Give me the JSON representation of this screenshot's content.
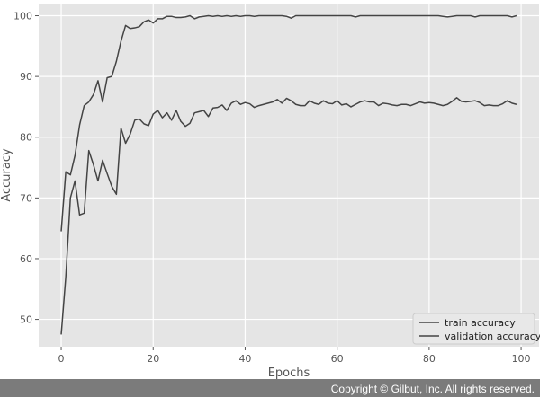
{
  "chart_data": {
    "type": "line",
    "title": "",
    "xlabel": "Epochs",
    "ylabel": "Accuracy",
    "xlim": [
      -4.9,
      103.9
    ],
    "ylim": [
      45.5,
      102.0
    ],
    "xticks": [
      0,
      20,
      40,
      60,
      80,
      100
    ],
    "yticks": [
      50,
      60,
      70,
      80,
      90,
      100
    ],
    "grid": true,
    "legend_position": "lower-right",
    "series": [
      {
        "name": "train accuracy",
        "color": "#444444",
        "x": [
          0,
          1,
          2,
          3,
          4,
          5,
          6,
          7,
          8,
          9,
          10,
          11,
          12,
          13,
          14,
          15,
          16,
          17,
          18,
          19,
          20,
          21,
          22,
          23,
          24,
          25,
          26,
          27,
          28,
          29,
          30,
          31,
          32,
          33,
          34,
          35,
          36,
          37,
          38,
          39,
          40,
          41,
          42,
          43,
          44,
          45,
          46,
          47,
          48,
          49,
          50,
          51,
          52,
          53,
          54,
          55,
          56,
          57,
          58,
          59,
          60,
          61,
          62,
          63,
          64,
          65,
          66,
          67,
          68,
          69,
          70,
          71,
          72,
          73,
          74,
          75,
          76,
          77,
          78,
          79,
          80,
          81,
          82,
          83,
          84,
          85,
          86,
          87,
          88,
          89,
          90,
          91,
          92,
          93,
          94,
          95,
          96,
          97,
          98,
          99
        ],
        "y": [
          64.5,
          74.3,
          73.8,
          77.0,
          82.0,
          85.2,
          85.8,
          87.0,
          89.3,
          85.8,
          89.8,
          90.0,
          92.5,
          95.8,
          98.4,
          97.9,
          98.0,
          98.2,
          99.0,
          99.3,
          98.8,
          99.5,
          99.5,
          99.9,
          99.9,
          99.7,
          99.7,
          99.8,
          100.0,
          99.5,
          99.8,
          99.9,
          100.0,
          99.9,
          100.0,
          99.9,
          100.0,
          99.9,
          100.0,
          99.9,
          100.0,
          100.0,
          99.9,
          100.0,
          100.0,
          100.0,
          100.0,
          100.0,
          100.0,
          99.9,
          99.6,
          100.0,
          100.0,
          100.0,
          100.0,
          100.0,
          100.0,
          100.0,
          100.0,
          100.0,
          100.0,
          100.0,
          100.0,
          100.0,
          99.8,
          100.0,
          100.0,
          100.0,
          100.0,
          100.0,
          100.0,
          100.0,
          100.0,
          100.0,
          100.0,
          100.0,
          100.0,
          100.0,
          100.0,
          100.0,
          100.0,
          100.0,
          100.0,
          99.9,
          99.8,
          99.9,
          100.0,
          100.0,
          100.0,
          100.0,
          99.8,
          100.0,
          100.0,
          100.0,
          100.0,
          100.0,
          100.0,
          100.0,
          99.8,
          100.0
        ]
      },
      {
        "name": "validation accuracy",
        "color": "#444444",
        "x": [
          0,
          1,
          2,
          3,
          4,
          5,
          6,
          7,
          8,
          9,
          10,
          11,
          12,
          13,
          14,
          15,
          16,
          17,
          18,
          19,
          20,
          21,
          22,
          23,
          24,
          25,
          26,
          27,
          28,
          29,
          30,
          31,
          32,
          33,
          34,
          35,
          36,
          37,
          38,
          39,
          40,
          41,
          42,
          43,
          44,
          45,
          46,
          47,
          48,
          49,
          50,
          51,
          52,
          53,
          54,
          55,
          56,
          57,
          58,
          59,
          60,
          61,
          62,
          63,
          64,
          65,
          66,
          67,
          68,
          69,
          70,
          71,
          72,
          73,
          74,
          75,
          76,
          77,
          78,
          79,
          80,
          81,
          82,
          83,
          84,
          85,
          86,
          87,
          88,
          89,
          90,
          91,
          92,
          93,
          94,
          95,
          96,
          97,
          98,
          99
        ],
        "y": [
          47.5,
          57.0,
          70.0,
          72.8,
          67.2,
          67.5,
          77.8,
          75.5,
          72.8,
          76.2,
          74.0,
          71.9,
          70.6,
          81.5,
          79.0,
          80.5,
          82.8,
          83.0,
          82.2,
          81.9,
          83.8,
          84.4,
          83.2,
          84.0,
          82.8,
          84.4,
          82.6,
          81.8,
          82.3,
          84.0,
          84.2,
          84.4,
          83.4,
          84.8,
          84.9,
          85.3,
          84.4,
          85.6,
          86.0,
          85.4,
          85.7,
          85.5,
          84.9,
          85.2,
          85.4,
          85.6,
          85.8,
          86.2,
          85.6,
          86.4,
          86.0,
          85.4,
          85.2,
          85.2,
          86.0,
          85.6,
          85.4,
          86.0,
          85.6,
          85.5,
          86.0,
          85.3,
          85.5,
          85.0,
          85.4,
          85.8,
          86.0,
          85.8,
          85.8,
          85.2,
          85.6,
          85.5,
          85.3,
          85.2,
          85.4,
          85.4,
          85.2,
          85.5,
          85.8,
          85.6,
          85.7,
          85.6,
          85.4,
          85.2,
          85.4,
          85.9,
          86.5,
          85.9,
          85.8,
          85.9,
          86.0,
          85.7,
          85.2,
          85.3,
          85.2,
          85.2,
          85.5,
          86.0,
          85.6,
          85.4
        ]
      }
    ]
  },
  "footer": {
    "copyright": "Copyright © Gilbut, Inc. All rights reserved."
  }
}
